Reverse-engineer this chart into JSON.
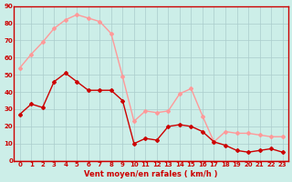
{
  "hours": [
    0,
    1,
    2,
    3,
    4,
    5,
    6,
    7,
    8,
    9,
    10,
    11,
    12,
    13,
    14,
    15,
    16,
    17,
    18,
    19,
    20,
    21,
    22,
    23
  ],
  "wind_avg": [
    27,
    33,
    31,
    46,
    51,
    46,
    41,
    41,
    41,
    35,
    10,
    13,
    12,
    20,
    21,
    20,
    17,
    11,
    9,
    6,
    5,
    6,
    7,
    5
  ],
  "wind_gust": [
    54,
    62,
    69,
    77,
    82,
    85,
    83,
    81,
    74,
    49,
    23,
    29,
    28,
    29,
    39,
    42,
    26,
    11,
    17,
    16,
    16,
    15,
    14,
    14
  ],
  "xlabel": "Vent moyen/en rafales ( km/h )",
  "ylim": [
    0,
    90
  ],
  "yticks": [
    0,
    10,
    20,
    30,
    40,
    50,
    60,
    70,
    80,
    90
  ],
  "color_avg": "#cc0000",
  "color_gust": "#ff9999",
  "bg_color": "#cceee8",
  "grid_color": "#aacccc"
}
